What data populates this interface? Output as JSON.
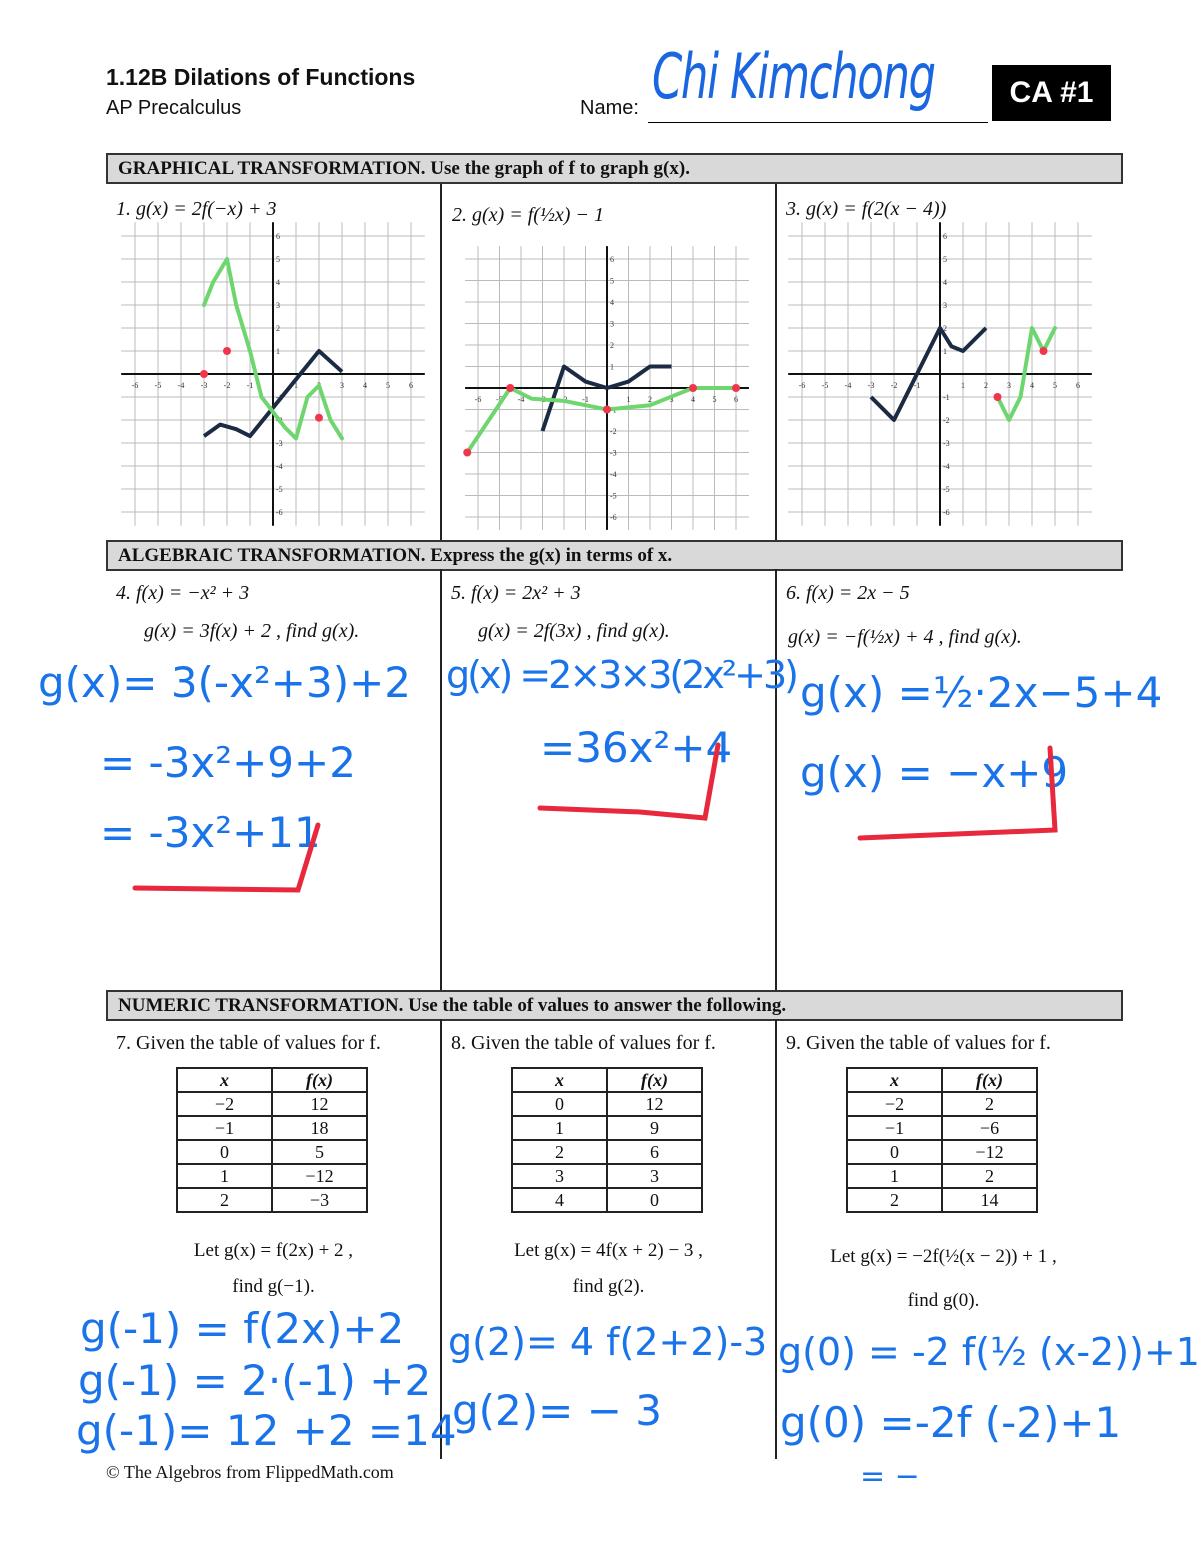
{
  "header": {
    "title": "1.12B Dilations of Functions",
    "subtitle": "AP Precalculus",
    "name_label": "Name:",
    "name_value": "Chi Kimchong",
    "badge": "CA #1"
  },
  "sections": {
    "graphical": "GRAPHICAL TRANSFORMATION.  Use the graph of f to graph g(x).",
    "algebraic": "ALGEBRAIC TRANSFORMATION.  Express the g(x) in terms of x.",
    "numeric": "NUMERIC TRANSFORMATION.  Use the table of values to answer the following."
  },
  "graph_problems": [
    {
      "label": "1.  g(x) = 2f(−x) + 3"
    },
    {
      "label": "2.  g(x) = f(½x) − 1"
    },
    {
      "label": "3.  g(x) = f(2(x − 4))"
    }
  ],
  "axis_ticks": [
    "-6",
    "-5",
    "-4",
    "-3",
    "-2",
    "-1",
    "1",
    "2",
    "3",
    "4",
    "5",
    "6"
  ],
  "colors": {
    "f_curve": "#1c2b44",
    "g_curve": "#6fd66f",
    "points": "#f0364b",
    "ink": "#1a73e8",
    "underline": "#e8283c"
  },
  "algebra_problems": [
    {
      "f": "4.  f(x) = −x² + 3",
      "g": "g(x) = 3f(x) + 2 , find g(x).",
      "work": [
        "g(x)= 3(-x²+3)+2",
        "= -3x²+9+2",
        "= -3x²+11"
      ]
    },
    {
      "f": "5.  f(x) = 2x² + 3",
      "g": "g(x) = 2f(3x) , find g(x).",
      "work": [
        "g(x) =2×3×3(2x²+3)",
        "=36x²+4"
      ]
    },
    {
      "f": "6.  f(x) = 2x − 5",
      "g": "g(x) = −f(½x) + 4 , find g(x).",
      "work": [
        "g(x) =½·2x−5+4",
        "g(x) = −x+9"
      ]
    }
  ],
  "numeric_problems": [
    {
      "prompt": "7.  Given the table of values for f.",
      "headers": [
        "x",
        "f(x)"
      ],
      "rows": [
        [
          "−2",
          "12"
        ],
        [
          "−1",
          "18"
        ],
        [
          "0",
          "5"
        ],
        [
          "1",
          "−12"
        ],
        [
          "2",
          "−3"
        ]
      ],
      "let": "Let g(x) = f(2x) + 2 ,",
      "find": "find g(−1).",
      "work": [
        "g(-1) = f(2x)+2",
        "g(-1) = 2·(-1) +2",
        "g(-1)= 12 +2 =14"
      ]
    },
    {
      "prompt": "8.  Given the table of values for f.",
      "headers": [
        "x",
        "f(x)"
      ],
      "rows": [
        [
          "0",
          "12"
        ],
        [
          "1",
          "9"
        ],
        [
          "2",
          "6"
        ],
        [
          "3",
          "3"
        ],
        [
          "4",
          "0"
        ]
      ],
      "let": "Let g(x) = 4f(x + 2) − 3 ,",
      "find": "find g(2).",
      "work": [
        "g(2)= 4 f(2+2)-3",
        "g(2)= −  3"
      ]
    },
    {
      "prompt": "9.  Given the table of values for f.",
      "headers": [
        "x",
        "f(x)"
      ],
      "rows": [
        [
          "−2",
          "2"
        ],
        [
          "−1",
          "−6"
        ],
        [
          "0",
          "−12"
        ],
        [
          "1",
          "2"
        ],
        [
          "2",
          "14"
        ]
      ],
      "let": "Let g(x) = −2f(½(x − 2)) + 1 ,",
      "find": "find g(0).",
      "work": [
        "g(0) = -2 f(½ (x-2))+1",
        "g(0) =-2f (-2)+1",
        "= −"
      ]
    }
  ],
  "footer": "© The Algebros from FlippedMath.com"
}
